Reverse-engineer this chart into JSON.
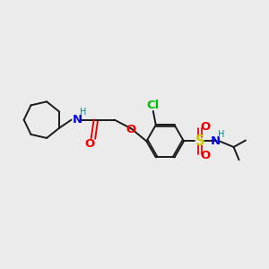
{
  "bg_color": "#ebebeb",
  "bond_color": "#1a1a1a",
  "atom_colors": {
    "N": "#0000ee",
    "O": "#ee0000",
    "S": "#cccc00",
    "Cl": "#00bb00",
    "H_label": "#008888",
    "C": "#1a1a1a"
  },
  "font_size": 8.5,
  "line_width": 1.4
}
